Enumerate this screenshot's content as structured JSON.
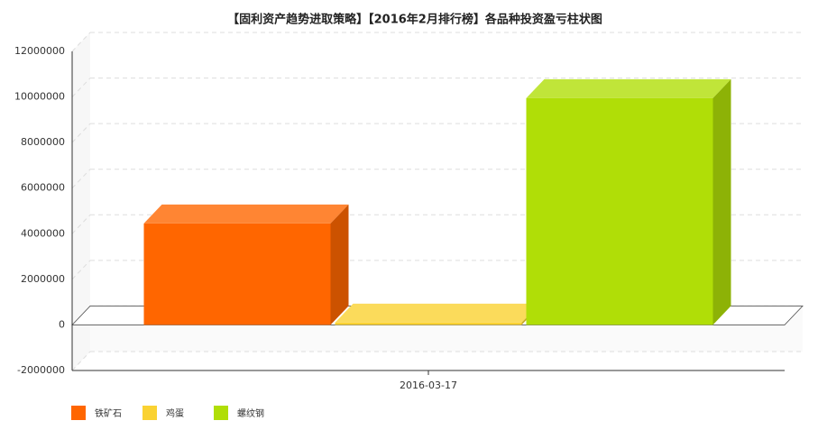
{
  "chart_data": {
    "type": "bar3d",
    "title": "【固利资产趋势进取策略】【2016年2月排行榜】各品种投资盈亏柱状图",
    "categories": [
      "2016-03-17"
    ],
    "series": [
      {
        "name": "铁矿石",
        "color": "#ff6600",
        "values": [
          4450000
        ]
      },
      {
        "name": "鸡蛋",
        "color": "#fad232",
        "values": [
          100000
        ]
      },
      {
        "name": "螺纹钢",
        "color": "#b0de07",
        "values": [
          9950000
        ]
      }
    ],
    "ylim": [
      -2000000,
      12000000
    ],
    "yticks": [
      -2000000,
      0,
      2000000,
      4000000,
      6000000,
      8000000,
      10000000,
      12000000
    ],
    "grid": true,
    "legend": "bottom-left"
  }
}
